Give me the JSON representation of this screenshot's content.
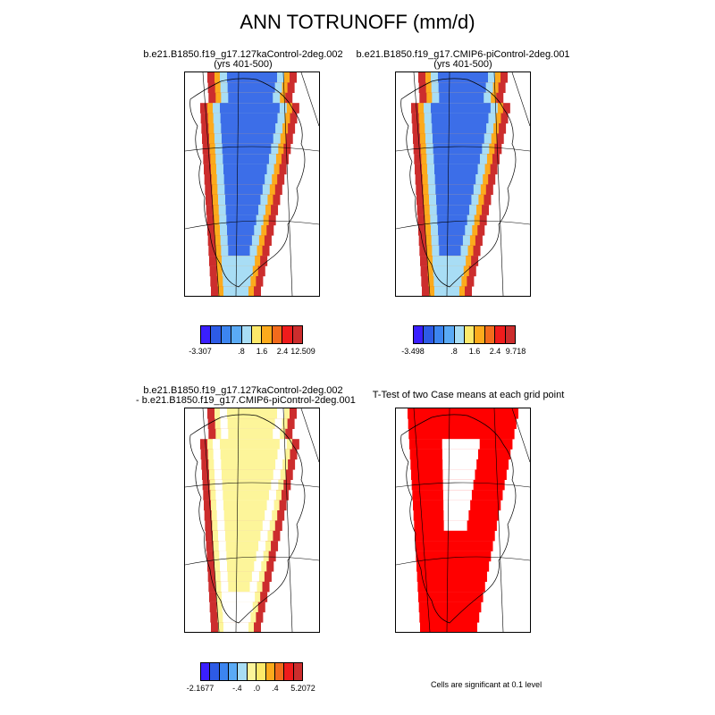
{
  "title": "ANN TOTRUNOFF (mm/d)",
  "panels": [
    {
      "line1": "b.e21.B1850.f19_g17.127kaControl-2deg.002",
      "line2": "(yrs 401-500)"
    },
    {
      "line1": "b.e21.B1850.f19_g17.CMIP6-piControl-2deg.001",
      "line2": "(yrs 401-500)"
    },
    {
      "line1": "b.e21.B1850.f19_g17.127kaControl-2deg.002",
      "line2": "- b.e21.B1850.f19_g17.CMIP6-piControl-2deg.001"
    },
    {
      "line1": "T-Test of two Case means at each grid point",
      "line2": ""
    }
  ],
  "colorbars": [
    {
      "colors": [
        "#3a1fff",
        "#2d5be6",
        "#3c85f0",
        "#5aaaf5",
        "#a8ddf5",
        "#fde96a",
        "#fcaa1c",
        "#f26b1c",
        "#ef1c1c",
        "#cc2d2d"
      ],
      "labels": [
        "-3.307",
        ".8",
        "1.6",
        "2.4",
        "12.509"
      ]
    },
    {
      "colors": [
        "#3a1fff",
        "#2d5be6",
        "#3c85f0",
        "#5aaaf5",
        "#a8ddf5",
        "#fde96a",
        "#fcaa1c",
        "#f26b1c",
        "#ef1c1c",
        "#cc2d2d"
      ],
      "labels": [
        "-3.498",
        ".8",
        "1.6",
        "2.4",
        "9.718"
      ]
    },
    {
      "colors": [
        "#3a1fff",
        "#2d5be6",
        "#3c85f0",
        "#5aaaf5",
        "#a8ddf5",
        "#fdf59a",
        "#fde96a",
        "#fcaa1c",
        "#f26b1c",
        "#ef1c1c",
        "#cc2d2d"
      ],
      "labels": [
        "-2.1677",
        "-.4",
        ".0",
        ".4",
        "5.2072"
      ]
    }
  ],
  "significance_note": "Cells are significant at 0.1 level",
  "colors": {
    "dark_blue": "#2d5be6",
    "blue": "#3c6ee8",
    "light_blue": "#a8ddf5",
    "yellow": "#fdf59a",
    "orange": "#fcaa1c",
    "red": "#cc2d2d",
    "sig_red": "#ff0000"
  }
}
